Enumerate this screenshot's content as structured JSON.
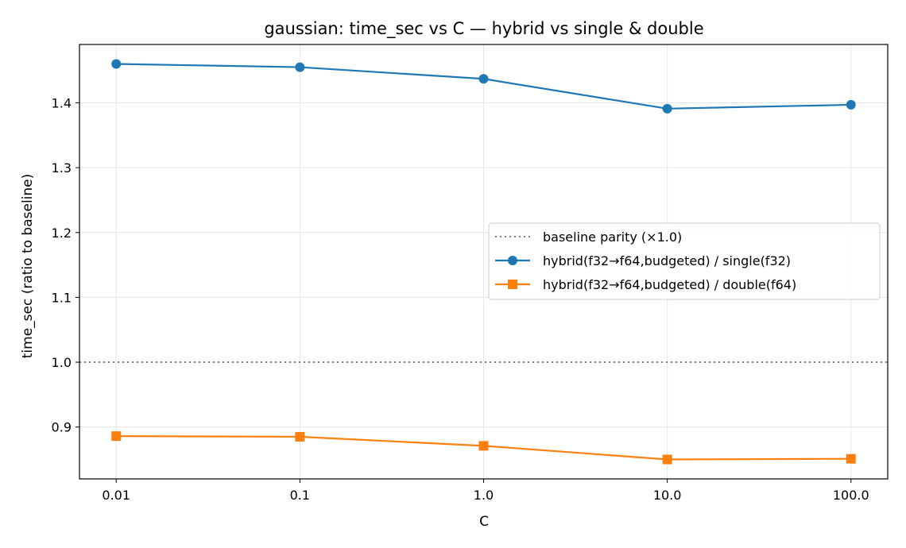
{
  "chart_data": {
    "type": "line",
    "title": "gaussian: time_sec vs C — hybrid vs single & double",
    "xlabel": "C",
    "ylabel": "time_sec (ratio to baseline)",
    "x_scale": "log",
    "categories": [
      "0.01",
      "0.1",
      "1.0",
      "10.0",
      "100.0"
    ],
    "x": [
      0.01,
      0.1,
      1.0,
      10.0,
      100.0
    ],
    "ylim": [
      0.82,
      1.49
    ],
    "yticks": [
      0.9,
      1.0,
      1.1,
      1.2,
      1.3,
      1.4
    ],
    "grid": true,
    "legend_position": "center-right",
    "reference_line": {
      "name": "baseline parity (×1.0)",
      "y": 1.0,
      "style": "dotted",
      "color": "#7f7f7f"
    },
    "series": [
      {
        "name": "hybrid(f32→f64,budgeted) / single(f32)",
        "values": [
          1.46,
          1.455,
          1.437,
          1.391,
          1.397
        ],
        "color": "#1f77b4",
        "marker": "circle"
      },
      {
        "name": "hybrid(f32→f64,budgeted) / double(f64)",
        "values": [
          0.886,
          0.885,
          0.871,
          0.85,
          0.851
        ],
        "color": "#ff7f0e",
        "marker": "square"
      }
    ]
  }
}
